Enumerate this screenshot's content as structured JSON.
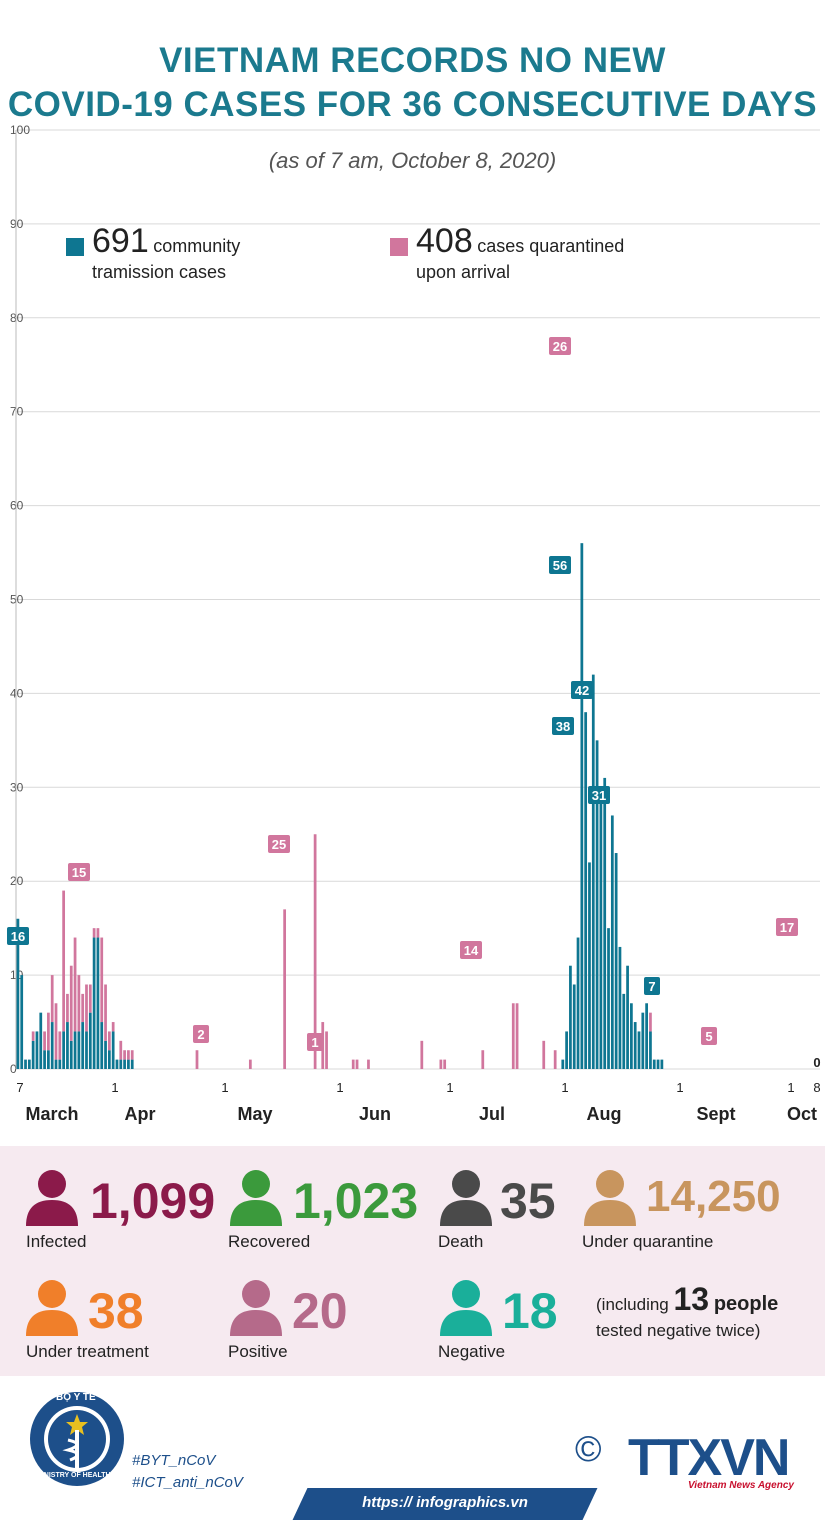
{
  "header": {
    "title_line1": "VIETNAM RECORDS NO NEW",
    "title_line2": "COVID-19 CASES FOR 36 CONSECUTIVE DAYS",
    "subtitle": "(as of 7 am, October 8, 2020)"
  },
  "legend": {
    "community": {
      "number": "691",
      "text1": "community",
      "text2": "tramission cases",
      "color": "#0e7691"
    },
    "quarantined": {
      "number": "408",
      "text1": "cases quarantined",
      "text2": "upon arrival",
      "color": "#d1769d"
    }
  },
  "chart_data": {
    "type": "bar",
    "stacked": true,
    "title": "Daily new COVID-19 cases",
    "ylim": [
      0,
      100
    ],
    "y_ticks": [
      "0",
      "10",
      "20",
      "30",
      "40",
      "50",
      "60",
      "70",
      "80",
      "90",
      "100"
    ],
    "x_ticks": [
      "7",
      "1",
      "1",
      "1",
      "1",
      "1",
      "1",
      "1",
      "8"
    ],
    "month_labels": [
      "March",
      "Apr",
      "May",
      "Jun",
      "Jul",
      "Aug",
      "Sept",
      "Oct"
    ],
    "series": [
      {
        "name": "community tramission cases",
        "color": "#0e7691",
        "values": [
          16,
          10,
          1,
          1,
          3,
          4,
          6,
          2,
          2,
          5,
          1,
          1,
          4,
          5,
          3,
          4,
          4,
          5,
          4,
          6,
          14,
          14,
          5,
          3,
          2,
          4,
          1,
          1,
          1,
          1,
          1,
          0,
          0,
          0,
          0,
          0,
          0,
          0,
          0,
          0,
          0,
          0,
          0,
          0,
          0,
          0,
          0,
          0,
          0,
          0,
          0,
          0,
          0,
          0,
          0,
          0,
          0,
          0,
          0,
          0,
          0,
          0,
          0,
          0,
          0,
          0,
          0,
          0,
          0,
          0,
          0,
          0,
          0,
          0,
          0,
          0,
          0,
          0,
          0,
          0,
          0,
          0,
          0,
          0,
          0,
          0,
          0,
          0,
          0,
          0,
          0,
          0,
          0,
          0,
          0,
          0,
          0,
          0,
          0,
          0,
          0,
          0,
          0,
          0,
          0,
          0,
          0,
          0,
          0,
          0,
          0,
          0,
          0,
          0,
          0,
          0,
          0,
          0,
          0,
          0,
          0,
          0,
          0,
          0,
          0,
          0,
          0,
          0,
          0,
          0,
          0,
          0,
          0,
          0,
          0,
          0,
          0,
          0,
          0,
          0,
          0,
          0,
          0,
          1,
          4,
          11,
          9,
          14,
          56,
          38,
          22,
          42,
          35,
          30,
          31,
          15,
          27,
          23,
          13,
          8,
          11,
          7,
          5,
          4,
          6,
          7,
          4,
          1,
          1,
          1,
          0,
          0,
          0,
          0,
          0,
          0,
          0,
          0,
          0,
          0,
          0,
          0,
          0,
          0,
          0,
          0,
          0,
          0,
          0,
          0,
          0,
          0,
          0,
          0,
          0,
          0,
          0,
          0,
          0,
          0,
          0,
          0,
          0,
          0,
          0,
          0,
          0,
          0,
          0,
          0,
          0
        ]
      },
      {
        "name": "cases quarantined upon arrival",
        "color": "#d1769d",
        "values": [
          0,
          0,
          0,
          0,
          1,
          0,
          0,
          2,
          4,
          5,
          6,
          3,
          15,
          3,
          8,
          10,
          6,
          3,
          5,
          3,
          1,
          1,
          9,
          6,
          2,
          1,
          0,
          2,
          1,
          1,
          1,
          0,
          0,
          0,
          0,
          0,
          0,
          0,
          0,
          0,
          0,
          0,
          0,
          0,
          0,
          0,
          0,
          2,
          0,
          0,
          0,
          0,
          0,
          0,
          0,
          0,
          0,
          0,
          0,
          0,
          0,
          1,
          0,
          0,
          0,
          0,
          0,
          0,
          0,
          0,
          17,
          0,
          0,
          0,
          0,
          0,
          0,
          0,
          25,
          0,
          5,
          4,
          0,
          0,
          0,
          0,
          0,
          0,
          1,
          1,
          0,
          0,
          1,
          0,
          0,
          0,
          0,
          0,
          0,
          0,
          0,
          0,
          0,
          0,
          0,
          0,
          3,
          0,
          0,
          0,
          0,
          1,
          1,
          0,
          0,
          0,
          0,
          0,
          0,
          0,
          0,
          0,
          2,
          0,
          0,
          0,
          0,
          0,
          0,
          0,
          7,
          7,
          0,
          0,
          0,
          0,
          0,
          0,
          3,
          0,
          0,
          2,
          0,
          0,
          0,
          0,
          0,
          0,
          0,
          0,
          0,
          0,
          0,
          0,
          0,
          0,
          0,
          0,
          0,
          0,
          0,
          0,
          0,
          0,
          0,
          0,
          2,
          0,
          0,
          0,
          0,
          0,
          0,
          0,
          0,
          0,
          0,
          0,
          0,
          0,
          0,
          0,
          0,
          0,
          0,
          0,
          0,
          0,
          0,
          0,
          0,
          0,
          0,
          0,
          0,
          0,
          0,
          0,
          0,
          0,
          0,
          0,
          0,
          0,
          0,
          0,
          0,
          0,
          0,
          0,
          0,
          0,
          0,
          0,
          0,
          0,
          0,
          0,
          0,
          0,
          0,
          0,
          0,
          0,
          0,
          0,
          0
        ]
      }
    ],
    "annotations": [
      {
        "text": "16",
        "series": "community"
      },
      {
        "text": "15",
        "series": "quarantined"
      },
      {
        "text": "2",
        "series": "quarantined"
      },
      {
        "text": "25",
        "series": "quarantined"
      },
      {
        "text": "1",
        "series": "quarantined"
      },
      {
        "text": "14",
        "series": "quarantined"
      },
      {
        "text": "26",
        "series": "quarantined"
      },
      {
        "text": "56",
        "series": "community"
      },
      {
        "text": "38",
        "series": "community"
      },
      {
        "text": "42",
        "series": "community"
      },
      {
        "text": "31",
        "series": "community"
      },
      {
        "text": "7",
        "series": "community"
      },
      {
        "text": "5",
        "series": "quarantined"
      },
      {
        "text": "17",
        "series": "quarantined"
      },
      {
        "text": "0",
        "series": "plain"
      }
    ]
  },
  "stats": {
    "infected": {
      "value": "1,099",
      "label": "Infected",
      "color": "#8b1a4a"
    },
    "recovered": {
      "value": "1,023",
      "label": "Recovered",
      "color": "#3b9a3c"
    },
    "death": {
      "value": "35",
      "label": "Death",
      "color": "#4a4a4a"
    },
    "under_quarantine": {
      "value": "14,250",
      "label": "Under quarantine",
      "color": "#c8955e"
    },
    "under_treatment": {
      "value": "38",
      "label": "Under treatment",
      "color": "#f07f2a"
    },
    "positive": {
      "value": "20",
      "label": "Positive",
      "color": "#b56a8a"
    },
    "negative": {
      "value": "18",
      "label": "Negative",
      "color": "#1aaf9a"
    },
    "note": {
      "pre": "(including",
      "number": "13",
      "post": "people",
      "line2": "tested negative twice)"
    }
  },
  "footer": {
    "tag1": "#BYT_nCoV",
    "tag2": "#ICT_anti_nCoV",
    "url": "https:// infographics.vn",
    "copyright": "©",
    "agency_logo": "TTXVN",
    "agency_name": "Vietnam News Agency",
    "ministry_top": "BỘ Y TẾ",
    "ministry_bottom": "MINISTRY OF HEALTH"
  }
}
